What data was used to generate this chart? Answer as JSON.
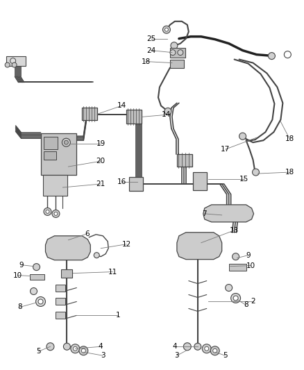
{
  "bg_color": "#ffffff",
  "line_color": "#444444",
  "label_color": "#000000",
  "label_fontsize": 7.5,
  "leader_color": "#777777",
  "figsize": [
    4.38,
    5.33
  ],
  "dpi": 100
}
